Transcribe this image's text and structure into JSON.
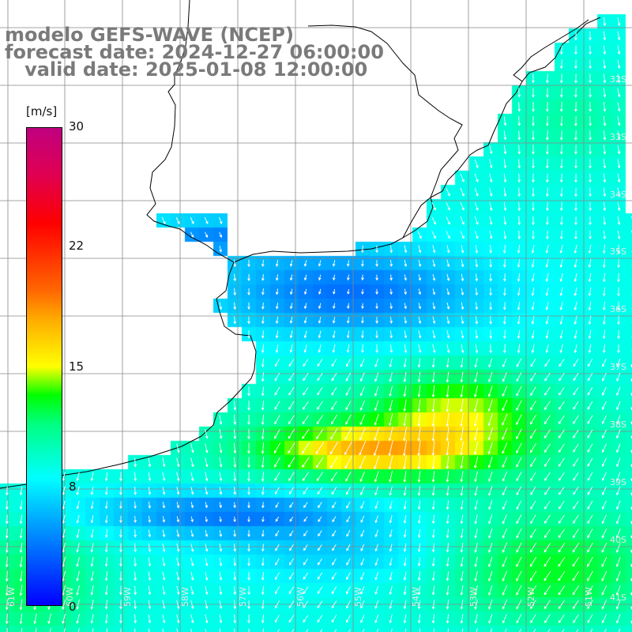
{
  "title": {
    "line1": "modelo GEFS-WAVE (NCEP)",
    "line2": "forecast date: 2024-12-27 06:00:00",
    "line3": "   valid date: 2025-01-08 12:00:00"
  },
  "colorbar": {
    "unit": "[m/s]",
    "ticks": [
      "30",
      "22",
      "15",
      "8",
      "0"
    ],
    "tick_values": [
      30,
      22,
      15,
      8,
      0
    ],
    "range": [
      0,
      30
    ]
  },
  "lat_labels": [
    "32S",
    "33S",
    "34S",
    "35S",
    "36S",
    "37S",
    "38S",
    "39S",
    "40S",
    "41S"
  ],
  "lon_labels": [
    "61W",
    "60W",
    "59W",
    "58W",
    "57W",
    "56W",
    "55W",
    "54W",
    "53W",
    "52W",
    "51W"
  ],
  "field": {
    "variable": "wind speed",
    "unit": "m/s",
    "extent": {
      "lon": [
        -61.5,
        -50.5
      ],
      "lat": [
        -41.5,
        -31.5
      ]
    }
  },
  "colors": {
    "title": "#7a7a7a",
    "arrows": "#ffffff",
    "grid": "#888888",
    "coast": "#000000",
    "land": "#ffffff"
  }
}
